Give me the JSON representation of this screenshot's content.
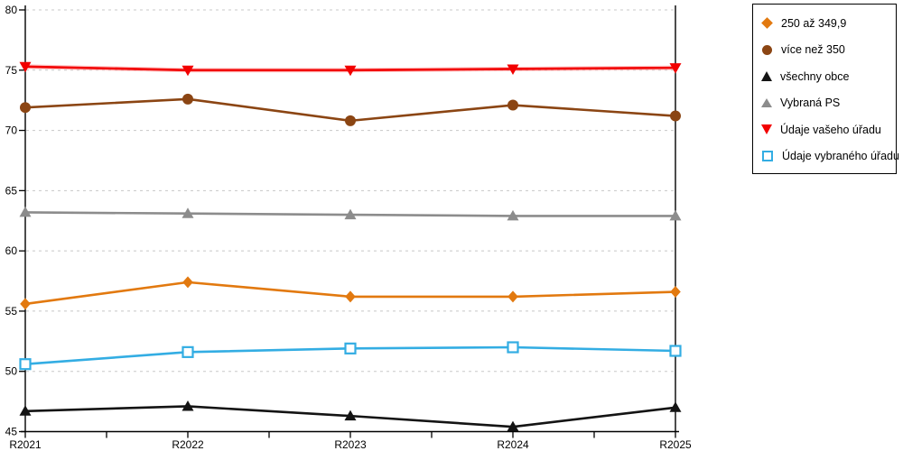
{
  "chart_data": {
    "type": "line",
    "title": "",
    "xlabel": "",
    "ylabel": "",
    "categories": [
      "R2021",
      "R2022",
      "R2023",
      "R2024",
      "R2025"
    ],
    "series": [
      {
        "name": "250 až 349,9",
        "marker": "diamond",
        "color": "#E2790F",
        "values": [
          55.6,
          57.4,
          56.2,
          56.2,
          56.6
        ]
      },
      {
        "name": "více než 350",
        "marker": "circle",
        "color": "#8B4513",
        "values": [
          71.9,
          72.6,
          70.8,
          72.1,
          71.2
        ]
      },
      {
        "name": "všechny obce",
        "marker": "triangle-up",
        "color": "#141414",
        "values": [
          46.7,
          47.1,
          46.3,
          45.4,
          47.0
        ]
      },
      {
        "name": "Vybraná PS",
        "marker": "triangle-up",
        "color": "#8C8C8C",
        "values": [
          63.2,
          63.1,
          63.0,
          62.9,
          62.9
        ]
      },
      {
        "name": "Údaje vašeho úřadu",
        "marker": "triangle-down",
        "color": "#F20000",
        "glow": "#FF9B9B",
        "values": [
          75.3,
          75.0,
          75.0,
          75.1,
          75.2
        ]
      },
      {
        "name": "Údaje vybraného úřadu",
        "marker": "square-open",
        "color": "#33ADE3",
        "values": [
          50.6,
          51.6,
          51.9,
          52.0,
          51.7
        ]
      }
    ],
    "ylim": [
      45,
      80
    ],
    "ytick_step": 5,
    "y_tick_labels": [
      "45",
      "50",
      "55",
      "60",
      "65",
      "70",
      "75",
      "80"
    ],
    "grid": "horizontal-dashed",
    "grid_color": "#C8C8C8",
    "axis_color": "#000000",
    "legend_position": "top-right"
  }
}
